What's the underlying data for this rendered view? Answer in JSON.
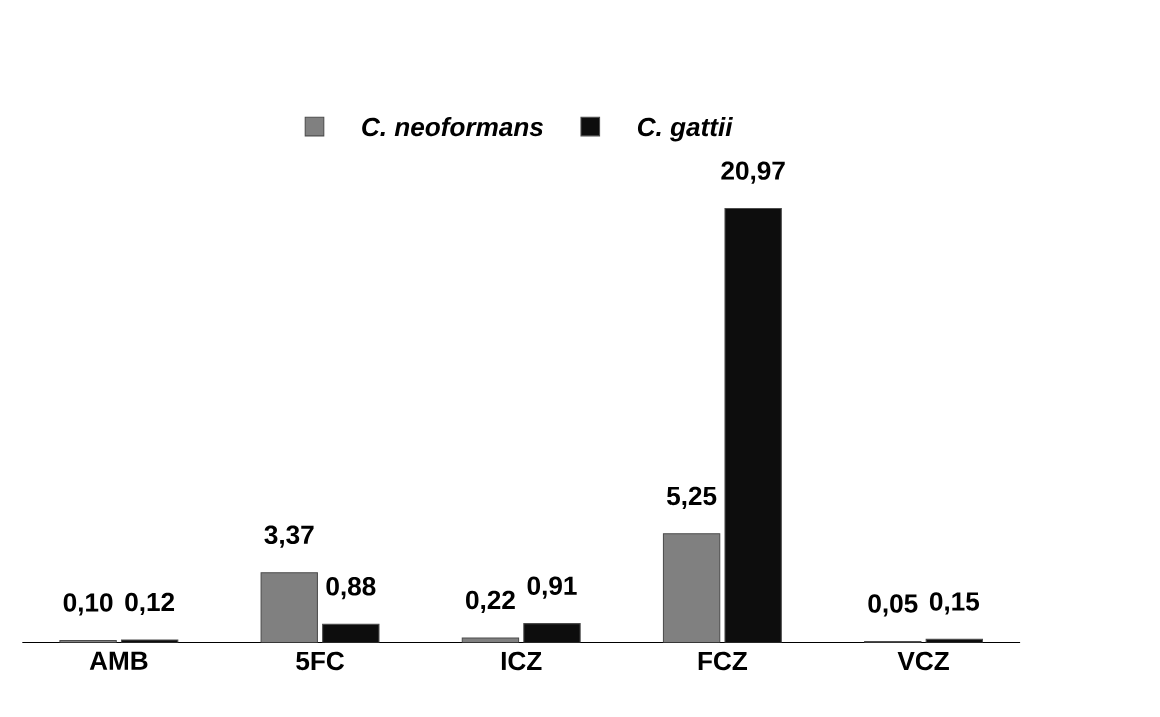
{
  "chart_data": {
    "type": "bar",
    "categories": [
      "AMB",
      "5FC",
      "ICZ",
      "FCZ",
      "VCZ"
    ],
    "series": [
      {
        "name": "C. neoformans",
        "color": "#808080",
        "values": [
          0.1,
          3.37,
          0.22,
          5.25,
          0.05
        ],
        "value_labels": [
          "0,10",
          "3,37",
          "0,22",
          "5,25",
          "0,05"
        ]
      },
      {
        "name": "C. gattii",
        "color": "#0d0d0d",
        "values": [
          0.12,
          0.88,
          0.91,
          20.97,
          0.15
        ],
        "value_labels": [
          "0,12",
          "0,88",
          "0,91",
          "20,97",
          "0,15"
        ]
      }
    ],
    "legend": "top"
  }
}
